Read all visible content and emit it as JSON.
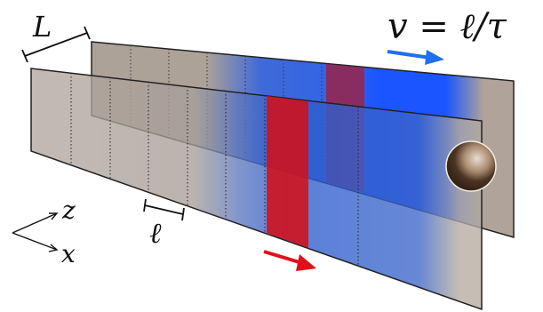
{
  "labels": {
    "L": "L",
    "ell": "ℓ",
    "axis_z": "z",
    "axis_x": "x",
    "velocity": "v = ℓ/τ"
  },
  "colors": {
    "panel_gray": "#b0a59b",
    "panel_blue": "#2a5fd6",
    "bright_blue": "#1a55ff",
    "stripe_red": "#d01018",
    "stripe_back": "#8a2a55",
    "arrow_blue": "#1f6ff0",
    "arrow_red": "#e0101a",
    "outline": "#222222"
  }
}
